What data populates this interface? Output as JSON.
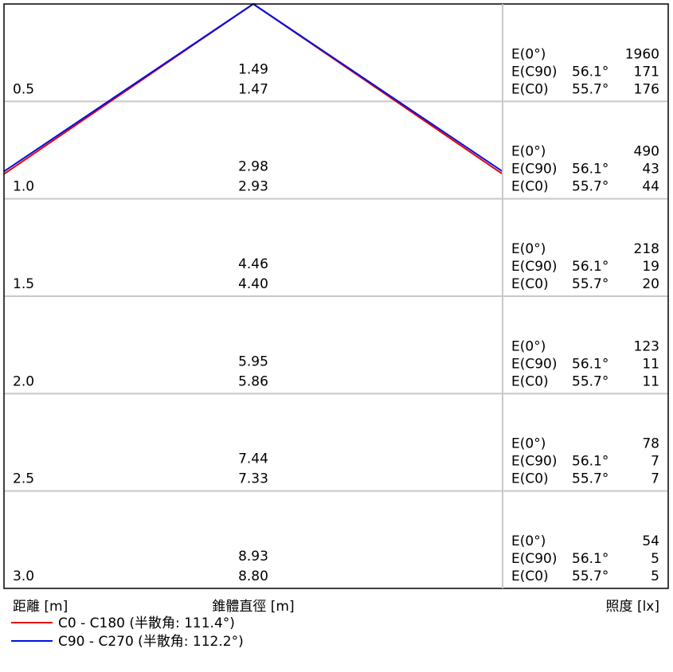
{
  "chart_data": {
    "type": "cone-diagram",
    "footer": {
      "distance_label": "距離 [m]",
      "diameter_label": "錐體直徑 [m]",
      "illuminance_label": "照度 [lx]"
    },
    "legend": [
      {
        "name": "C0 - C180 (半散角: 111.4°)",
        "color": "#e8000b"
      },
      {
        "name": "C90 - C270 (半散角: 112.2°)",
        "color": "#0010e0"
      }
    ],
    "half_spread_deg": {
      "C0": 111.4,
      "C90": 112.2
    },
    "rows": [
      {
        "distance": "0.5",
        "d_c90": "1.49",
        "d_c0": "1.47",
        "e0_label": "E(0°)",
        "e0": "1960",
        "ec90_label": "E(C90)",
        "ec90_angle": "56.1°",
        "ec90": "171",
        "ec0_label": "E(C0)",
        "ec0_angle": "55.7°",
        "ec0": "176"
      },
      {
        "distance": "1.0",
        "d_c90": "2.98",
        "d_c0": "2.93",
        "e0_label": "E(0°)",
        "e0": "490",
        "ec90_label": "E(C90)",
        "ec90_angle": "56.1°",
        "ec90": "43",
        "ec0_label": "E(C0)",
        "ec0_angle": "55.7°",
        "ec0": "44"
      },
      {
        "distance": "1.5",
        "d_c90": "4.46",
        "d_c0": "4.40",
        "e0_label": "E(0°)",
        "e0": "218",
        "ec90_label": "E(C90)",
        "ec90_angle": "56.1°",
        "ec90": "19",
        "ec0_label": "E(C0)",
        "ec0_angle": "55.7°",
        "ec0": "20"
      },
      {
        "distance": "2.0",
        "d_c90": "5.95",
        "d_c0": "5.86",
        "e0_label": "E(0°)",
        "e0": "123",
        "ec90_label": "E(C90)",
        "ec90_angle": "56.1°",
        "ec90": "11",
        "ec0_label": "E(C0)",
        "ec0_angle": "55.7°",
        "ec0": "11"
      },
      {
        "distance": "2.5",
        "d_c90": "7.44",
        "d_c0": "7.33",
        "e0_label": "E(0°)",
        "e0": "78",
        "ec90_label": "E(C90)",
        "ec90_angle": "56.1°",
        "ec90": "7",
        "ec0_label": "E(C0)",
        "ec0_angle": "55.7°",
        "ec0": "7"
      },
      {
        "distance": "3.0",
        "d_c90": "8.93",
        "d_c0": "8.80",
        "e0_label": "E(0°)",
        "e0": "54",
        "ec90_label": "E(C90)",
        "ec90_angle": "56.1°",
        "ec90": "5",
        "ec0_label": "E(C0)",
        "ec0_angle": "55.7°",
        "ec0": "5"
      }
    ]
  }
}
